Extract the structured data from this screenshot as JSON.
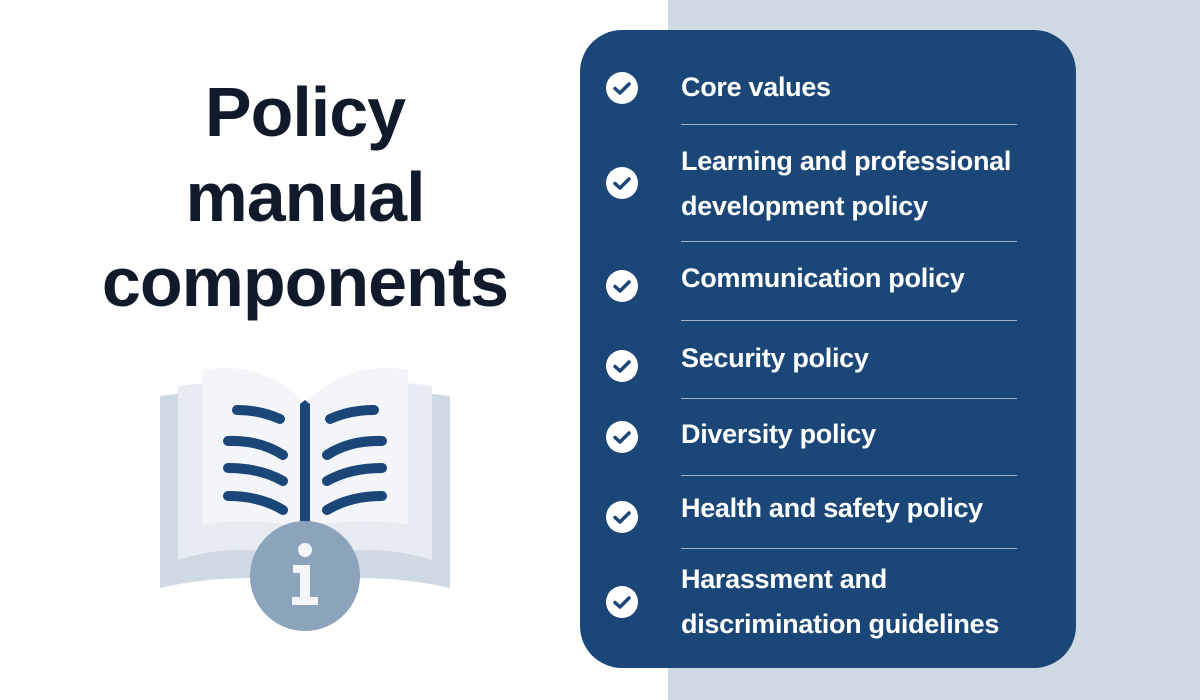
{
  "title": [
    "Policy",
    "manual",
    "components"
  ],
  "colors": {
    "panel": "#1a4778",
    "right_background": "#cfd9e3",
    "title": "#111a2b",
    "info_badge": "#8ba3bb"
  },
  "illustration": {
    "icon": "open-book-info-icon"
  },
  "items": [
    {
      "lines": [
        "Core values"
      ],
      "icon": "check-circle-icon"
    },
    {
      "lines": [
        "Learning and professional",
        "development policy"
      ],
      "icon": "check-circle-icon"
    },
    {
      "lines": [
        "Communication policy"
      ],
      "icon": "check-circle-icon"
    },
    {
      "lines": [
        "Security policy"
      ],
      "icon": "check-circle-icon"
    },
    {
      "lines": [
        "Diversity policy"
      ],
      "icon": "check-circle-icon"
    },
    {
      "lines": [
        "Health and safety policy"
      ],
      "icon": "check-circle-icon"
    },
    {
      "lines": [
        "Harassment and",
        "discrimination guidelines"
      ],
      "icon": "check-circle-icon"
    }
  ]
}
